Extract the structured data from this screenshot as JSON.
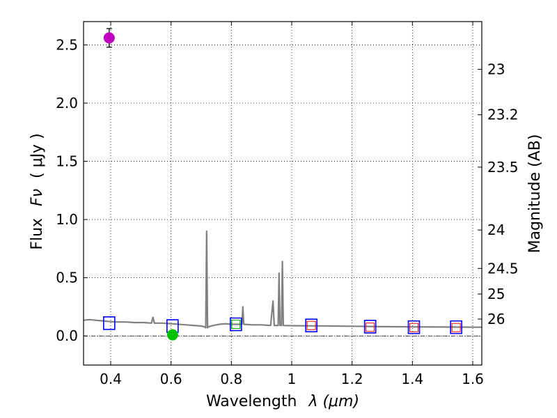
{
  "chart_data": {
    "type": "scatter",
    "xlabel": "Wavelength",
    "xlabel_symbol": "λ (μm)",
    "ylabel": "Flux",
    "ylabel_symbol": "Fν",
    "ylabel_unit": "( μJy )",
    "y2label": "Magnitude (AB)",
    "xlim": [
      0.31,
      1.63
    ],
    "ylim": [
      -0.25,
      2.7
    ],
    "grid": true,
    "x_ticks": [
      0.4,
      0.6,
      0.8,
      1.0,
      1.2,
      1.4,
      1.6
    ],
    "x_tick_labels": [
      "0.4",
      "0.6",
      "0.8",
      "1",
      "1.2",
      "1.4",
      "1.6"
    ],
    "y_ticks": [
      0.0,
      0.5,
      1.0,
      1.5,
      2.0,
      2.5
    ],
    "y_tick_labels": [
      "0.0",
      "0.5",
      "1.0",
      "1.5",
      "2.0",
      "2.5"
    ],
    "magnitude_ticks": [
      "23",
      "23.2",
      "23.5",
      "24",
      "24.5",
      "25",
      "26"
    ],
    "magnitude_tick_flux": [
      2.29,
      1.9,
      1.45,
      0.91,
      0.58,
      0.36,
      0.145
    ],
    "model_spectrum": {
      "color": "#808080",
      "points": [
        [
          0.31,
          0.135
        ],
        [
          0.33,
          0.14
        ],
        [
          0.35,
          0.135
        ],
        [
          0.37,
          0.13
        ],
        [
          0.39,
          0.125
        ],
        [
          0.42,
          0.12
        ],
        [
          0.45,
          0.12
        ],
        [
          0.48,
          0.115
        ],
        [
          0.51,
          0.115
        ],
        [
          0.535,
          0.11
        ],
        [
          0.54,
          0.16
        ],
        [
          0.545,
          0.11
        ],
        [
          0.57,
          0.11
        ],
        [
          0.6,
          0.105
        ],
        [
          0.65,
          0.095
        ],
        [
          0.7,
          0.085
        ],
        [
          0.71,
          0.08
        ],
        [
          0.715,
          0.07
        ],
        [
          0.718,
          0.9
        ],
        [
          0.721,
          0.07
        ],
        [
          0.725,
          0.08
        ],
        [
          0.74,
          0.09
        ],
        [
          0.76,
          0.1
        ],
        [
          0.78,
          0.105
        ],
        [
          0.8,
          0.1
        ],
        [
          0.82,
          0.1
        ],
        [
          0.835,
          0.1
        ],
        [
          0.838,
          0.25
        ],
        [
          0.841,
          0.1
        ],
        [
          0.87,
          0.095
        ],
        [
          0.9,
          0.095
        ],
        [
          0.93,
          0.09
        ],
        [
          0.938,
          0.3
        ],
        [
          0.942,
          0.09
        ],
        [
          0.955,
          0.09
        ],
        [
          0.958,
          0.54
        ],
        [
          0.961,
          0.09
        ],
        [
          0.966,
          0.09
        ],
        [
          0.969,
          0.64
        ],
        [
          0.972,
          0.09
        ],
        [
          1.0,
          0.088
        ],
        [
          1.05,
          0.087
        ],
        [
          1.1,
          0.086
        ],
        [
          1.2,
          0.083
        ],
        [
          1.3,
          0.08
        ],
        [
          1.4,
          0.078
        ],
        [
          1.5,
          0.077
        ],
        [
          1.63,
          0.075
        ]
      ]
    },
    "model_photometry": {
      "marker": "square",
      "color": "#0000ff",
      "points": [
        [
          0.395,
          0.11
        ],
        [
          0.605,
          0.085
        ],
        [
          0.815,
          0.1
        ],
        [
          1.065,
          0.09
        ],
        [
          1.26,
          0.08
        ],
        [
          1.405,
          0.075
        ],
        [
          1.545,
          0.075
        ]
      ]
    },
    "photometry_inner_boxes": {
      "marker": "square",
      "colors": [
        "#00aa00",
        "#00aa00",
        "#00aa00",
        "#ff0000",
        "#ff0000",
        "#ff0000",
        "#ff0000"
      ],
      "points": [
        [
          0.815,
          0.1
        ],
        [
          0.815,
          0.1
        ],
        [
          0.815,
          0.1
        ],
        [
          1.065,
          0.09
        ],
        [
          1.26,
          0.075
        ],
        [
          1.405,
          0.072
        ],
        [
          1.545,
          0.072
        ]
      ]
    },
    "observed": [
      {
        "x": 0.395,
        "y": 2.56,
        "yerr": 0.08,
        "color": "#bf00bf"
      },
      {
        "x": 0.605,
        "y": 0.01,
        "yerr": 0.025,
        "color": "#00c000"
      }
    ],
    "zero_line": 0.0
  }
}
